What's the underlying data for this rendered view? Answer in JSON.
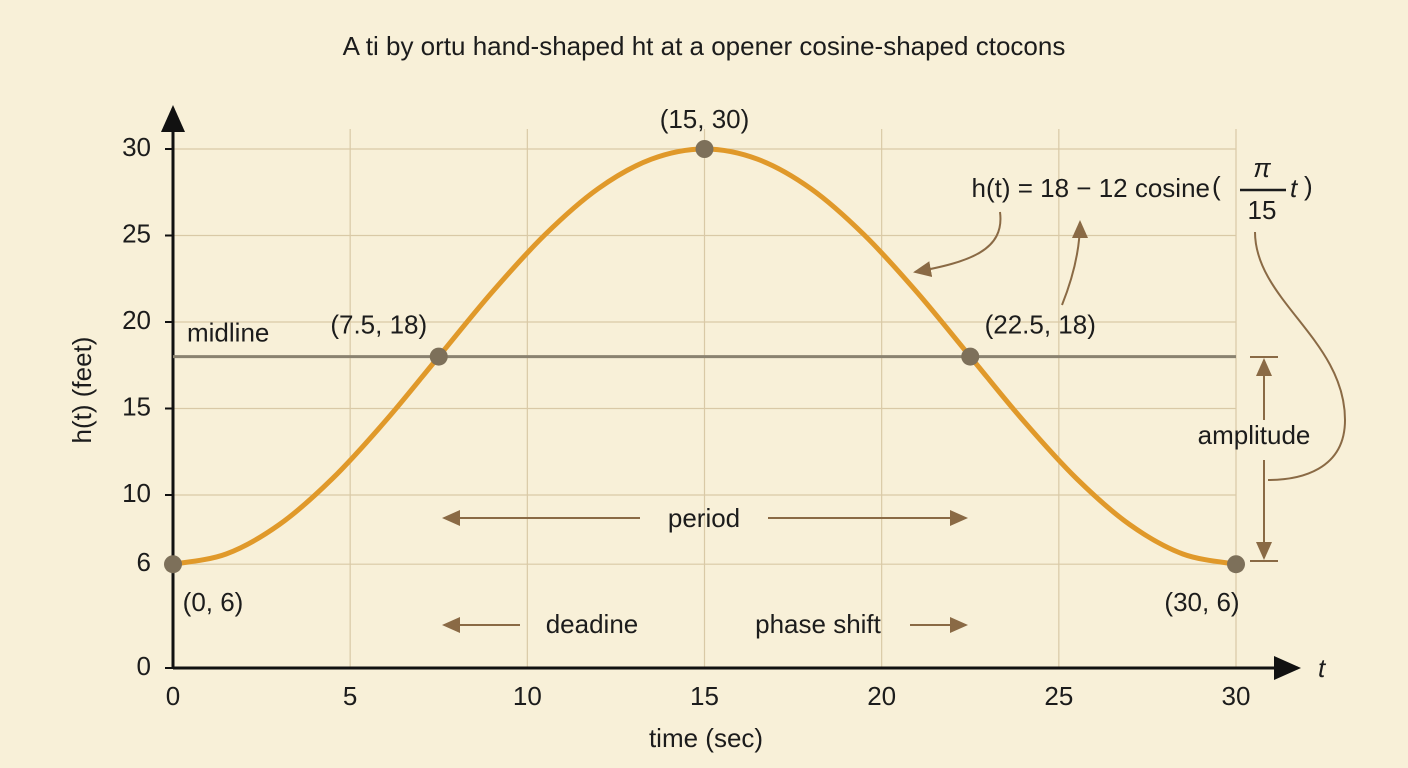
{
  "chart_data": {
    "type": "line",
    "title": "A ti by ortu hand-shaped ht at a opener cosine-shaped ctocons",
    "x_label": "time (sec)",
    "y_label": "h(t) (feet)",
    "x_axis_var": "t",
    "x": [
      0,
      1.5,
      3,
      4.5,
      6,
      7.5,
      9,
      10.5,
      12,
      13.5,
      15,
      16.5,
      18,
      19.5,
      21,
      22.5,
      24,
      25.5,
      27,
      28.5,
      30
    ],
    "series": [
      {
        "color": "#e0992a",
        "values": [
          6,
          6.59,
          8.29,
          10.95,
          14.29,
          18,
          21.71,
          25.05,
          27.71,
          29.41,
          30,
          29.41,
          27.71,
          25.05,
          21.71,
          18,
          14.29,
          10.95,
          8.29,
          6.59,
          6
        ]
      }
    ],
    "points": [
      {
        "x": 0,
        "y": 6,
        "label": "(0, 6)"
      },
      {
        "x": 7.5,
        "y": 18,
        "label": "(7.5, 18)"
      },
      {
        "x": 15,
        "y": 30,
        "label": "(15, 30)"
      },
      {
        "x": 22.5,
        "y": 18,
        "label": "(22.5, 18)"
      },
      {
        "x": 30,
        "y": 6,
        "label": "(30, 6)"
      }
    ],
    "point_color": "#7d705a",
    "midline": {
      "value": 18,
      "label": "midline",
      "color": "#8a8270"
    },
    "xlim": [
      0,
      30
    ],
    "ylim": [
      0,
      30
    ],
    "xticks": [
      0,
      5,
      10,
      15,
      20,
      25,
      30
    ],
    "yticks": [
      0,
      6,
      10,
      15,
      20,
      25,
      30
    ],
    "grid": true,
    "annotations": {
      "period": "period",
      "left": "deadine",
      "right": "phase shift",
      "amplitude": "amplitude"
    },
    "formula": {
      "lhs": "h(t) = 18 − 12 cosine",
      "open": "(",
      "numerator": "π",
      "denominator": "15",
      "var": "t",
      "close": ")"
    }
  }
}
